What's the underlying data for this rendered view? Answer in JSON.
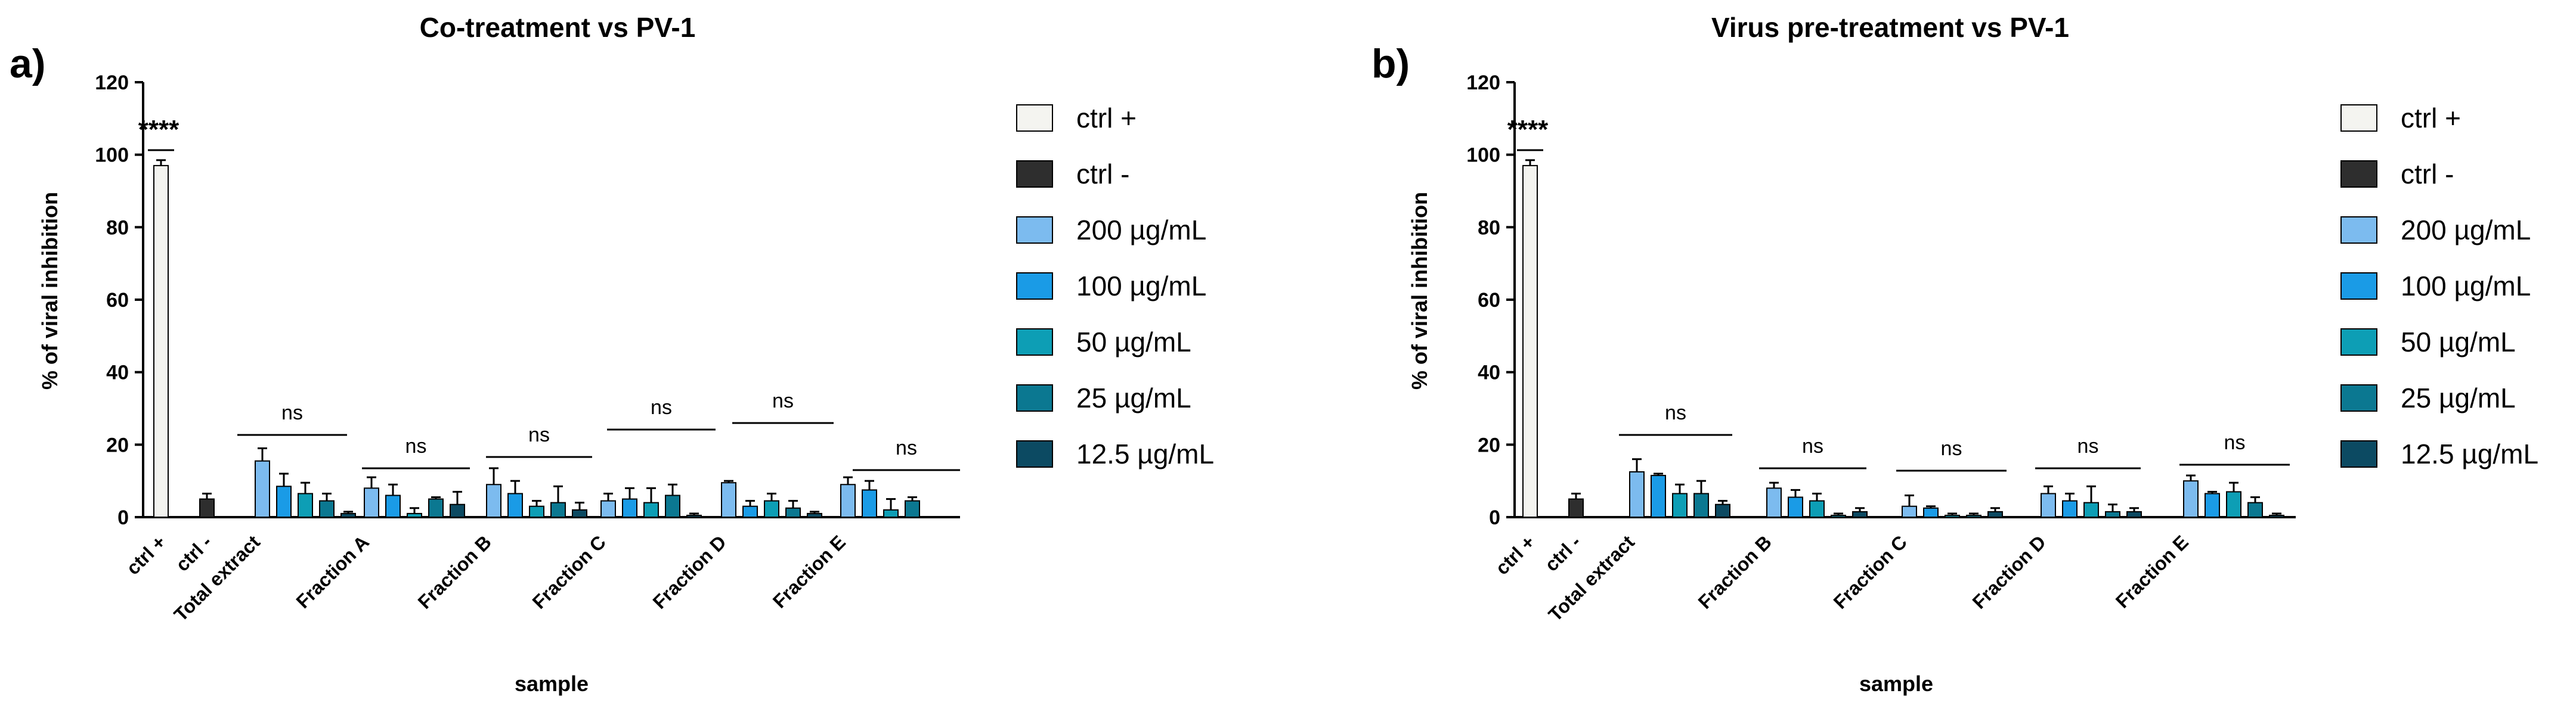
{
  "colors": {
    "ctrl_pos": "#f4f4f0",
    "ctrl_neg": "#2e2e2e",
    "c200": "#7cbbef",
    "c100": "#1a9be6",
    "c50": "#0d9eb5",
    "c25": "#0b7891",
    "c12_5": "#0c4a62"
  },
  "legend": [
    {
      "label": "ctrl +",
      "color_key": "ctrl_pos"
    },
    {
      "label": "ctrl -",
      "color_key": "ctrl_neg"
    },
    {
      "label": "200 µg/mL",
      "color_key": "c200"
    },
    {
      "label": "100 µg/mL",
      "color_key": "c100"
    },
    {
      "label": "50 µg/mL",
      "color_key": "c50"
    },
    {
      "label": "25 µg/mL",
      "color_key": "c25"
    },
    {
      "label": "12.5 µg/mL",
      "color_key": "c12_5"
    }
  ],
  "chart_data": [
    {
      "panel": "a)",
      "type": "bar",
      "title": "Co-treatment vs PV-1",
      "xlabel": "sample",
      "ylabel": "% of viral inhibition",
      "ylim": [
        0,
        120
      ],
      "yticks": [
        0,
        20,
        40,
        60,
        80,
        100,
        120
      ],
      "significance_ctrl": "****",
      "groups": [
        {
          "category": "ctrl +",
          "values": [
            97
          ],
          "errors": [
            1.5
          ],
          "series": [
            "ctrl +"
          ]
        },
        {
          "category": "ctrl -",
          "values": [
            5
          ],
          "errors": [
            1.5
          ],
          "series": [
            "ctrl -"
          ]
        },
        {
          "category": "Total extract",
          "values": [
            15.5,
            8.5,
            6.5,
            4.5,
            1
          ],
          "errors": [
            3.5,
            3.5,
            3,
            2,
            0.5
          ],
          "series": [
            "200 µg/mL",
            "100 µg/mL",
            "50 µg/mL",
            "25 µg/mL",
            "12.5 µg/mL"
          ],
          "annotation": "ns"
        },
        {
          "category": "Fraction A",
          "values": [
            8,
            6,
            1,
            5,
            3.5
          ],
          "errors": [
            3,
            3,
            1.5,
            0.5,
            3.5
          ],
          "series": [
            "200 µg/mL",
            "100 µg/mL",
            "50 µg/mL",
            "25 µg/mL",
            "12.5 µg/mL"
          ],
          "annotation": "ns"
        },
        {
          "category": "Fraction B",
          "values": [
            9,
            6.5,
            3,
            4,
            2
          ],
          "errors": [
            4.5,
            3.5,
            1.5,
            4.5,
            2
          ],
          "series": [
            "200 µg/mL",
            "100 µg/mL",
            "50 µg/mL",
            "25 µg/mL",
            "12.5 µg/mL"
          ],
          "annotation": "ns"
        },
        {
          "category": "Fraction C",
          "values": [
            4.5,
            5,
            4,
            6,
            0.5
          ],
          "errors": [
            2,
            3,
            4,
            3,
            0.5
          ],
          "series": [
            "200 µg/mL",
            "100 µg/mL",
            "50 µg/mL",
            "25 µg/mL",
            "12.5 µg/mL"
          ],
          "annotation": "ns"
        },
        {
          "category": "Fraction D",
          "values": [
            9.5,
            3,
            4.5,
            2.5,
            1
          ],
          "errors": [
            0.5,
            1.5,
            2,
            2,
            0.5
          ],
          "series": [
            "200 µg/mL",
            "100 µg/mL",
            "50 µg/mL",
            "25 µg/mL",
            "12.5 µg/mL"
          ],
          "annotation": "ns"
        },
        {
          "category": "Fraction E",
          "values": [
            9,
            7.5,
            2,
            4.5,
            0
          ],
          "errors": [
            2,
            2.5,
            3,
            1,
            0
          ],
          "series": [
            "200 µg/mL",
            "100 µg/mL",
            "50 µg/mL",
            "25 µg/mL",
            "12.5 µg/mL"
          ],
          "annotation": "ns"
        }
      ]
    },
    {
      "panel": "b)",
      "type": "bar",
      "title": "Virus pre-treatment vs PV-1",
      "xlabel": "sample",
      "ylabel": "% of viral inhibition",
      "ylim": [
        0,
        120
      ],
      "yticks": [
        0,
        20,
        40,
        60,
        80,
        100,
        120
      ],
      "significance_ctrl": "****",
      "groups": [
        {
          "category": "ctrl +",
          "values": [
            97
          ],
          "errors": [
            1.5
          ],
          "series": [
            "ctrl +"
          ]
        },
        {
          "category": "ctrl -",
          "values": [
            5
          ],
          "errors": [
            1.5
          ],
          "series": [
            "ctrl -"
          ]
        },
        {
          "category": "Total extract",
          "values": [
            12.5,
            11.5,
            6.5,
            6.5,
            3.5
          ],
          "errors": [
            3.5,
            0.5,
            2.5,
            3.5,
            1
          ],
          "series": [
            "200 µg/mL",
            "100 µg/mL",
            "50 µg/mL",
            "25 µg/mL",
            "12.5 µg/mL"
          ],
          "annotation": "ns"
        },
        {
          "category": "Fraction B",
          "values": [
            8,
            5.5,
            4.5,
            0.5,
            1.5
          ],
          "errors": [
            1.5,
            2,
            2,
            0.5,
            1
          ],
          "series": [
            "200 µg/mL",
            "100 µg/mL",
            "50 µg/mL",
            "25 µg/mL",
            "12.5 µg/mL"
          ],
          "annotation": "ns"
        },
        {
          "category": "Fraction C",
          "values": [
            3,
            2.5,
            0.5,
            0.5,
            1.5
          ],
          "errors": [
            3,
            0.5,
            0.5,
            0.5,
            1
          ],
          "series": [
            "200 µg/mL",
            "100 µg/mL",
            "50 µg/mL",
            "25 µg/mL",
            "12.5 µg/mL"
          ],
          "annotation": "ns"
        },
        {
          "category": "Fraction D",
          "values": [
            6.5,
            4.5,
            4,
            1.5,
            1.5
          ],
          "errors": [
            2,
            2,
            4.5,
            2,
            1
          ],
          "series": [
            "200 µg/mL",
            "100 µg/mL",
            "50 µg/mL",
            "25 µg/mL",
            "12.5 µg/mL"
          ],
          "annotation": "ns"
        },
        {
          "category": "Fraction E",
          "values": [
            10,
            6.5,
            7,
            4,
            0.5
          ],
          "errors": [
            1.5,
            0.5,
            2.5,
            1.5,
            0.5
          ],
          "series": [
            "200 µg/mL",
            "100 µg/mL",
            "50 µg/mL",
            "25 µg/mL",
            "12.5 µg/mL"
          ],
          "annotation": "ns"
        }
      ]
    }
  ]
}
